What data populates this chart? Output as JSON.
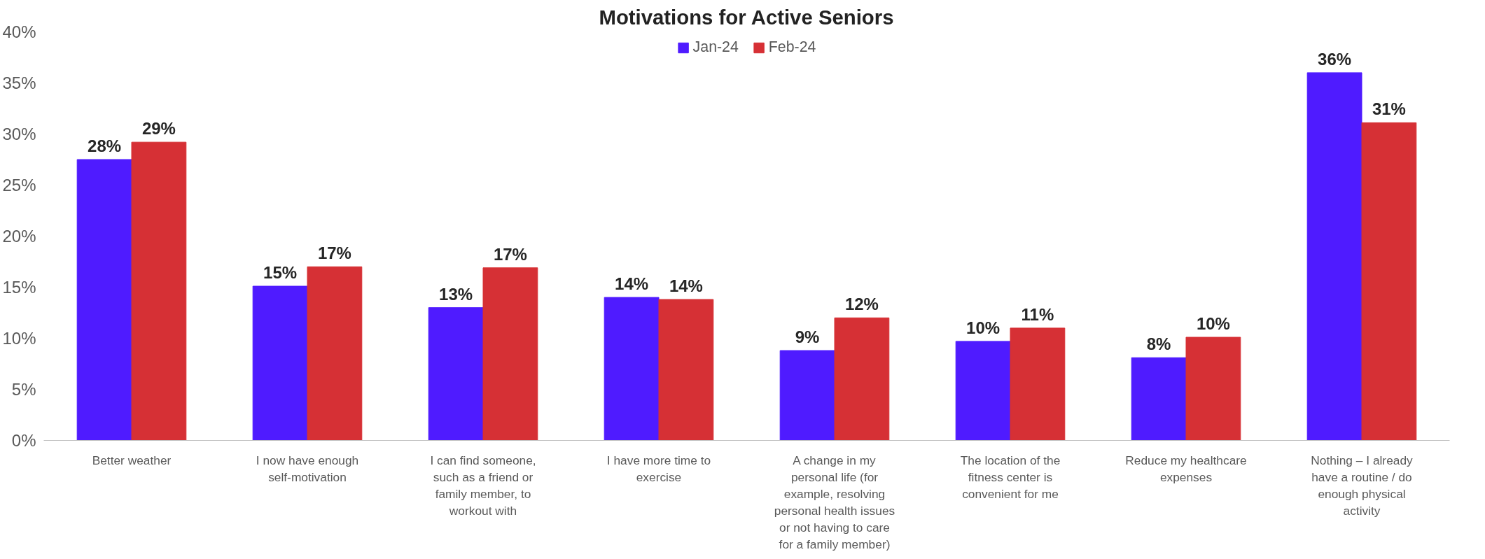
{
  "chart_data": {
    "type": "bar",
    "title": "Motivations for Active Seniors",
    "categories": [
      "Better weather",
      "I now have enough self-motivation",
      "I can find someone, such as a friend or family member, to workout with",
      "I have more time to exercise",
      "A change in my personal life (for example, resolving personal health issues or not having to care for a family member)",
      "The location of the fitness center is convenient for me",
      "Reduce my healthcare expenses",
      "Nothing – I already have a routine / do enough physical activity"
    ],
    "series": [
      {
        "name": "Jan-24",
        "color": "#4f1bff",
        "values": [
          27.5,
          15.1,
          13,
          14,
          8.8,
          9.7,
          8.1,
          36
        ],
        "value_labels": [
          "28%",
          "15%",
          "13%",
          "14%",
          "9%",
          "10%",
          "8%",
          "36%"
        ]
      },
      {
        "name": "Feb-24",
        "color": "#d63035",
        "values": [
          29.2,
          17,
          16.9,
          13.8,
          12,
          11,
          10.1,
          31.1
        ],
        "value_labels": [
          "29%",
          "17%",
          "17%",
          "14%",
          "12%",
          "11%",
          "10%",
          "31%"
        ]
      }
    ],
    "ylim": [
      0,
      40
    ],
    "yticks": [
      {
        "value": 0,
        "label": "0%"
      },
      {
        "value": 5,
        "label": "5%"
      },
      {
        "value": 10,
        "label": "10%"
      },
      {
        "value": 15,
        "label": "15%"
      },
      {
        "value": 20,
        "label": "20%"
      },
      {
        "value": 25,
        "label": "25%"
      },
      {
        "value": 30,
        "label": "30%"
      },
      {
        "value": 35,
        "label": "35%"
      },
      {
        "value": 40,
        "label": "40%"
      }
    ],
    "legend": "top",
    "grid": false
  }
}
